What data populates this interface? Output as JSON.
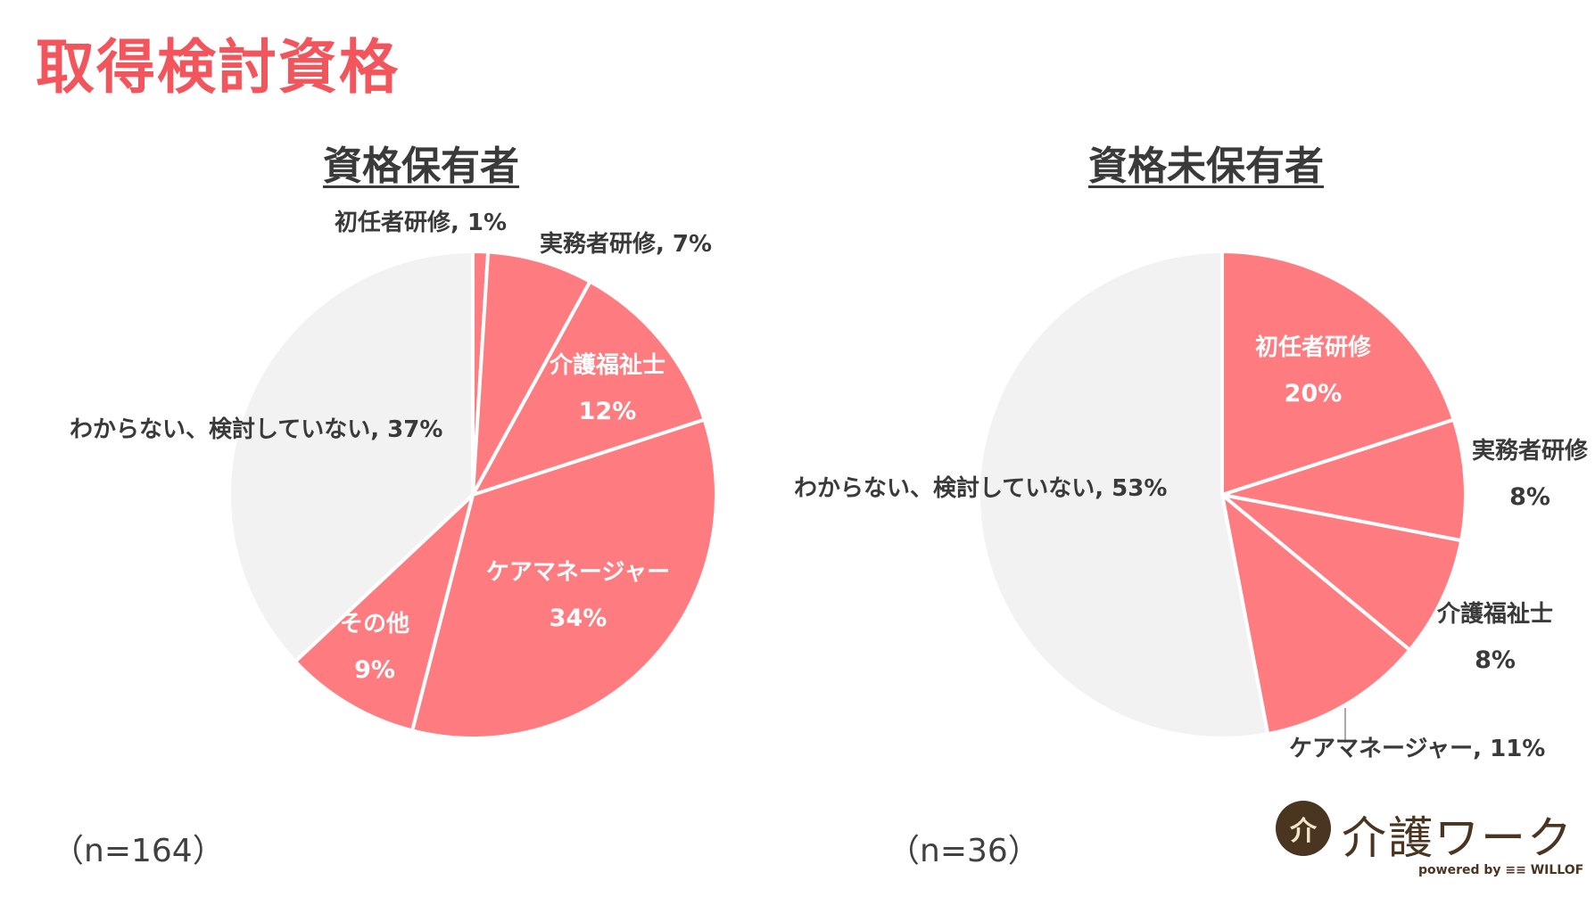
{
  "page_title": "取得検討資格",
  "logo": {
    "mark": "介",
    "text": "介護ワーク",
    "sub": "powered by ≡≡ WILLOF"
  },
  "colors": {
    "accent": "#f2555c",
    "slice": "#fe7b80",
    "other": "#f2f2f2",
    "separator": "#ffffff",
    "label_dark": "#3a3a3a",
    "label_light": "#ffffff"
  },
  "chart_data": [
    {
      "type": "pie",
      "title": "資格保有者",
      "n_label": "（n=164）",
      "slices": [
        {
          "label": "初任者研修",
          "value": 1,
          "value_label": "1%",
          "style": "outside"
        },
        {
          "label": "実務者研修",
          "value": 7,
          "value_label": "7%",
          "style": "outside"
        },
        {
          "label": "介護福祉士",
          "value": 12,
          "value_label": "12%",
          "style": "inside"
        },
        {
          "label": "ケアマネージャー",
          "value": 34,
          "value_label": "34%",
          "style": "inside"
        },
        {
          "label": "その他",
          "value": 9,
          "value_label": "9%",
          "style": "inside"
        },
        {
          "label": "わからない、検討していない",
          "value": 37,
          "value_label": "37%",
          "style": "outside",
          "gray": true
        }
      ]
    },
    {
      "type": "pie",
      "title": "資格未保有者",
      "n_label": "（n=36）",
      "slices": [
        {
          "label": "初任者研修",
          "value": 20,
          "value_label": "20%",
          "style": "inside"
        },
        {
          "label": "実務者研修",
          "value": 8,
          "value_label": "8%",
          "style": "outside-stack"
        },
        {
          "label": "介護福祉士",
          "value": 8,
          "value_label": "8%",
          "style": "outside-stack"
        },
        {
          "label": "ケアマネージャー",
          "value": 11,
          "value_label": "11%",
          "style": "outside"
        },
        {
          "label": "わからない、検討していない",
          "value": 53,
          "value_label": "53%",
          "style": "outside",
          "gray": true
        }
      ]
    }
  ]
}
